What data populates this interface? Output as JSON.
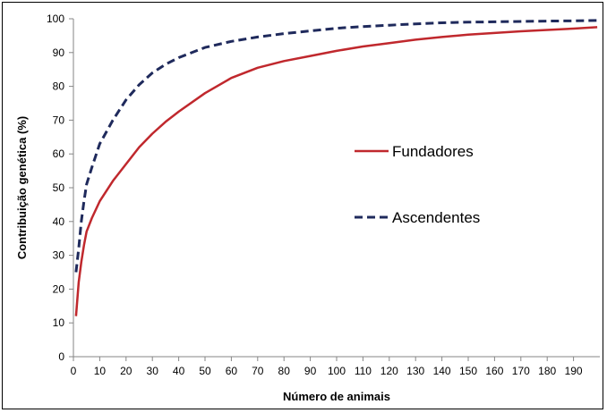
{
  "chart_data": {
    "type": "line",
    "title": "",
    "xlabel": "Número de animais",
    "ylabel": "Contribuição genética (%)",
    "xlim": [
      0,
      200
    ],
    "ylim": [
      0,
      100
    ],
    "x_ticks": [
      0,
      10,
      20,
      30,
      40,
      50,
      60,
      70,
      80,
      90,
      100,
      110,
      120,
      130,
      140,
      150,
      160,
      170,
      180,
      190
    ],
    "y_ticks": [
      0,
      10,
      20,
      30,
      40,
      50,
      60,
      70,
      80,
      90,
      100
    ],
    "grid": false,
    "legend_position": "center-right",
    "series": [
      {
        "name": "Fundadores",
        "color": "#c0282d",
        "style": "solid",
        "x": [
          1,
          2,
          3,
          4,
          5,
          7,
          10,
          15,
          20,
          25,
          30,
          35,
          40,
          50,
          60,
          70,
          80,
          90,
          100,
          110,
          120,
          130,
          140,
          150,
          160,
          170,
          180,
          190,
          199
        ],
        "y": [
          12,
          22,
          28,
          33,
          37,
          41,
          46,
          52,
          57,
          62,
          66,
          69.5,
          72.5,
          78,
          82.5,
          85.5,
          87.5,
          89,
          90.5,
          91.8,
          92.8,
          93.8,
          94.6,
          95.3,
          95.8,
          96.3,
          96.7,
          97.1,
          97.5
        ]
      },
      {
        "name": "Ascendentes",
        "color": "#1f2a5c",
        "style": "dashed",
        "x": [
          1,
          2,
          3,
          4,
          5,
          7,
          10,
          15,
          20,
          25,
          30,
          35,
          40,
          50,
          60,
          70,
          80,
          90,
          100,
          110,
          120,
          130,
          140,
          150,
          160,
          170,
          180,
          190,
          199
        ],
        "y": [
          25,
          32,
          40,
          46,
          51,
          56,
          63,
          70,
          76,
          80.5,
          84,
          86.5,
          88.5,
          91.5,
          93.3,
          94.6,
          95.6,
          96.4,
          97.2,
          97.7,
          98.1,
          98.5,
          98.8,
          99,
          99.1,
          99.2,
          99.3,
          99.4,
          99.5
        ]
      }
    ]
  }
}
